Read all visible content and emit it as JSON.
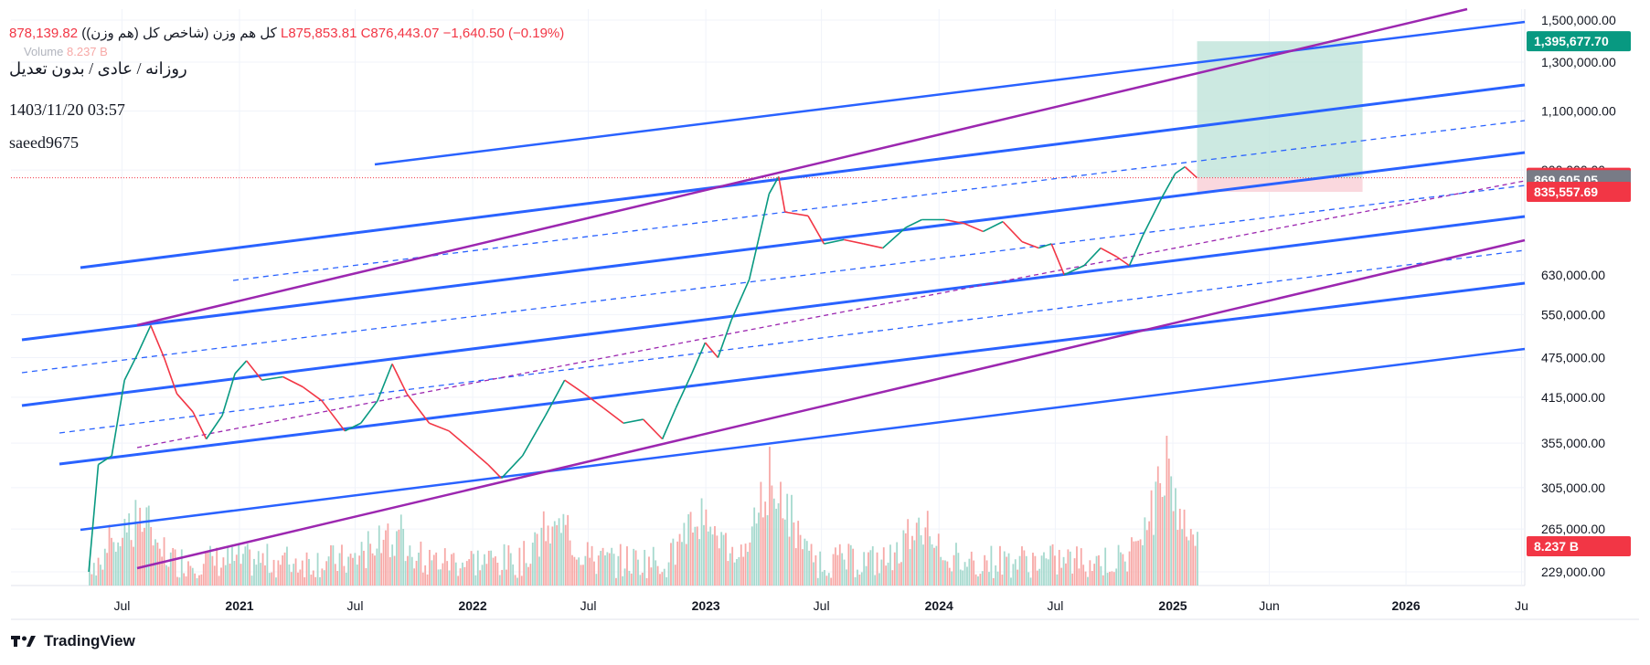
{
  "legend": {
    "title": "کل هم وزن (شاخص کل (هم وزن))",
    "ohlc": "878,139.82  L875,853.81  C876,443.07  −1,640.50 (−0.19%)",
    "volume_label": "Volume",
    "volume_value": "8.237 B"
  },
  "annotations": {
    "line1": "روزانه / عادی / بدون تعدیل",
    "line2": "1403/11/20 03:57",
    "line3": "saeed9675"
  },
  "branding": {
    "name": "TradingView",
    "logo_icon": "tradingview-logo-icon"
  },
  "chart_data": {
    "type": "candlestick",
    "scale": "log",
    "y_ticks": [
      "1,500,000.00",
      "1,300,000.00",
      "1,100,000.00",
      "900,000.00",
      "630,000.00",
      "550,000.00",
      "475,000.00",
      "415,000.00",
      "355,000.00",
      "305,000.00",
      "265,000.00",
      "229,000.00"
    ],
    "x_ticks": [
      {
        "label": "Jul",
        "bold": false
      },
      {
        "label": "2021",
        "bold": true
      },
      {
        "label": "Jul",
        "bold": false
      },
      {
        "label": "2022",
        "bold": true
      },
      {
        "label": "Jul",
        "bold": false
      },
      {
        "label": "2023",
        "bold": true
      },
      {
        "label": "Jul",
        "bold": false
      },
      {
        "label": "2024",
        "bold": true
      },
      {
        "label": "Jul",
        "bold": false
      },
      {
        "label": "2025",
        "bold": true
      },
      {
        "label": "Jun",
        "bold": false
      },
      {
        "label": "2026",
        "bold": true
      },
      {
        "label": "Ju",
        "bold": false
      }
    ],
    "price_tags": [
      {
        "label": "1,395,677.70",
        "color": "#089981"
      },
      {
        "label": "876,443.07",
        "color": "#f23645"
      },
      {
        "label": "869,605.05",
        "color": "#787b86"
      },
      {
        "label": "835,557.69",
        "color": "#f23645"
      },
      {
        "label": "8.237 B",
        "color": "#f23645"
      }
    ],
    "price_path": [
      [
        "2020-05-10",
        229000
      ],
      [
        "2020-05-25",
        330000
      ],
      [
        "2020-06-15",
        340000
      ],
      [
        "2020-07-05",
        440000
      ],
      [
        "2020-07-25",
        480000
      ],
      [
        "2020-08-15",
        530000
      ],
      [
        "2020-09-05",
        475000
      ],
      [
        "2020-09-25",
        420000
      ],
      [
        "2020-10-20",
        395000
      ],
      [
        "2020-11-10",
        360000
      ],
      [
        "2020-12-05",
        390000
      ],
      [
        "2020-12-25",
        450000
      ],
      [
        "2021-01-12",
        470000
      ],
      [
        "2021-02-05",
        440000
      ],
      [
        "2021-03-10",
        445000
      ],
      [
        "2021-04-10",
        430000
      ],
      [
        "2021-05-10",
        410000
      ],
      [
        "2021-06-15",
        370000
      ],
      [
        "2021-07-10",
        380000
      ],
      [
        "2021-08-05",
        410000
      ],
      [
        "2021-08-28",
        465000
      ],
      [
        "2021-09-20",
        420000
      ],
      [
        "2021-10-25",
        380000
      ],
      [
        "2021-11-25",
        370000
      ],
      [
        "2021-12-25",
        350000
      ],
      [
        "2022-01-25",
        330000
      ],
      [
        "2022-02-15",
        315000
      ],
      [
        "2022-03-20",
        340000
      ],
      [
        "2022-04-25",
        390000
      ],
      [
        "2022-05-25",
        440000
      ],
      [
        "2022-06-25",
        420000
      ],
      [
        "2022-07-25",
        400000
      ],
      [
        "2022-08-25",
        380000
      ],
      [
        "2022-09-25",
        385000
      ],
      [
        "2022-10-25",
        360000
      ],
      [
        "2022-11-15",
        400000
      ],
      [
        "2022-12-10",
        450000
      ],
      [
        "2022-12-31",
        500000
      ],
      [
        "2023-01-20",
        475000
      ],
      [
        "2023-02-10",
        540000
      ],
      [
        "2023-03-10",
        620000
      ],
      [
        "2023-04-10",
        830000
      ],
      [
        "2023-04-25",
        880000
      ],
      [
        "2023-05-05",
        780000
      ],
      [
        "2023-06-10",
        770000
      ],
      [
        "2023-07-05",
        700000
      ],
      [
        "2023-08-05",
        710000
      ],
      [
        "2023-09-05",
        700000
      ],
      [
        "2023-10-05",
        690000
      ],
      [
        "2023-11-10",
        740000
      ],
      [
        "2023-12-05",
        760000
      ],
      [
        "2024-01-10",
        760000
      ],
      [
        "2024-02-10",
        750000
      ],
      [
        "2024-03-10",
        730000
      ],
      [
        "2024-04-10",
        755000
      ],
      [
        "2024-05-10",
        705000
      ],
      [
        "2024-06-05",
        690000
      ],
      [
        "2024-06-25",
        700000
      ],
      [
        "2024-07-15",
        630000
      ],
      [
        "2024-08-15",
        650000
      ],
      [
        "2024-09-10",
        690000
      ],
      [
        "2024-10-05",
        670000
      ],
      [
        "2024-10-25",
        650000
      ],
      [
        "2024-11-15",
        720000
      ],
      [
        "2024-12-15",
        820000
      ],
      [
        "2025-01-05",
        890000
      ],
      [
        "2025-01-20",
        910000
      ],
      [
        "2025-02-08",
        876443
      ]
    ],
    "target_zone": {
      "from_date": "2025-02-08",
      "to_date": "2025-10-25",
      "entry": 876443.07,
      "target": 1395677.7,
      "stop": 835557.69
    }
  },
  "colors": {
    "up": "#089981",
    "down": "#f23645",
    "channel": "#2962ff",
    "pitchfork": "#9c27b0",
    "volume_up": "#a6d9ce",
    "volume_down": "#f7a9a7",
    "target_fill": "#bfe3da",
    "stop_fill": "#f9d4da"
  }
}
